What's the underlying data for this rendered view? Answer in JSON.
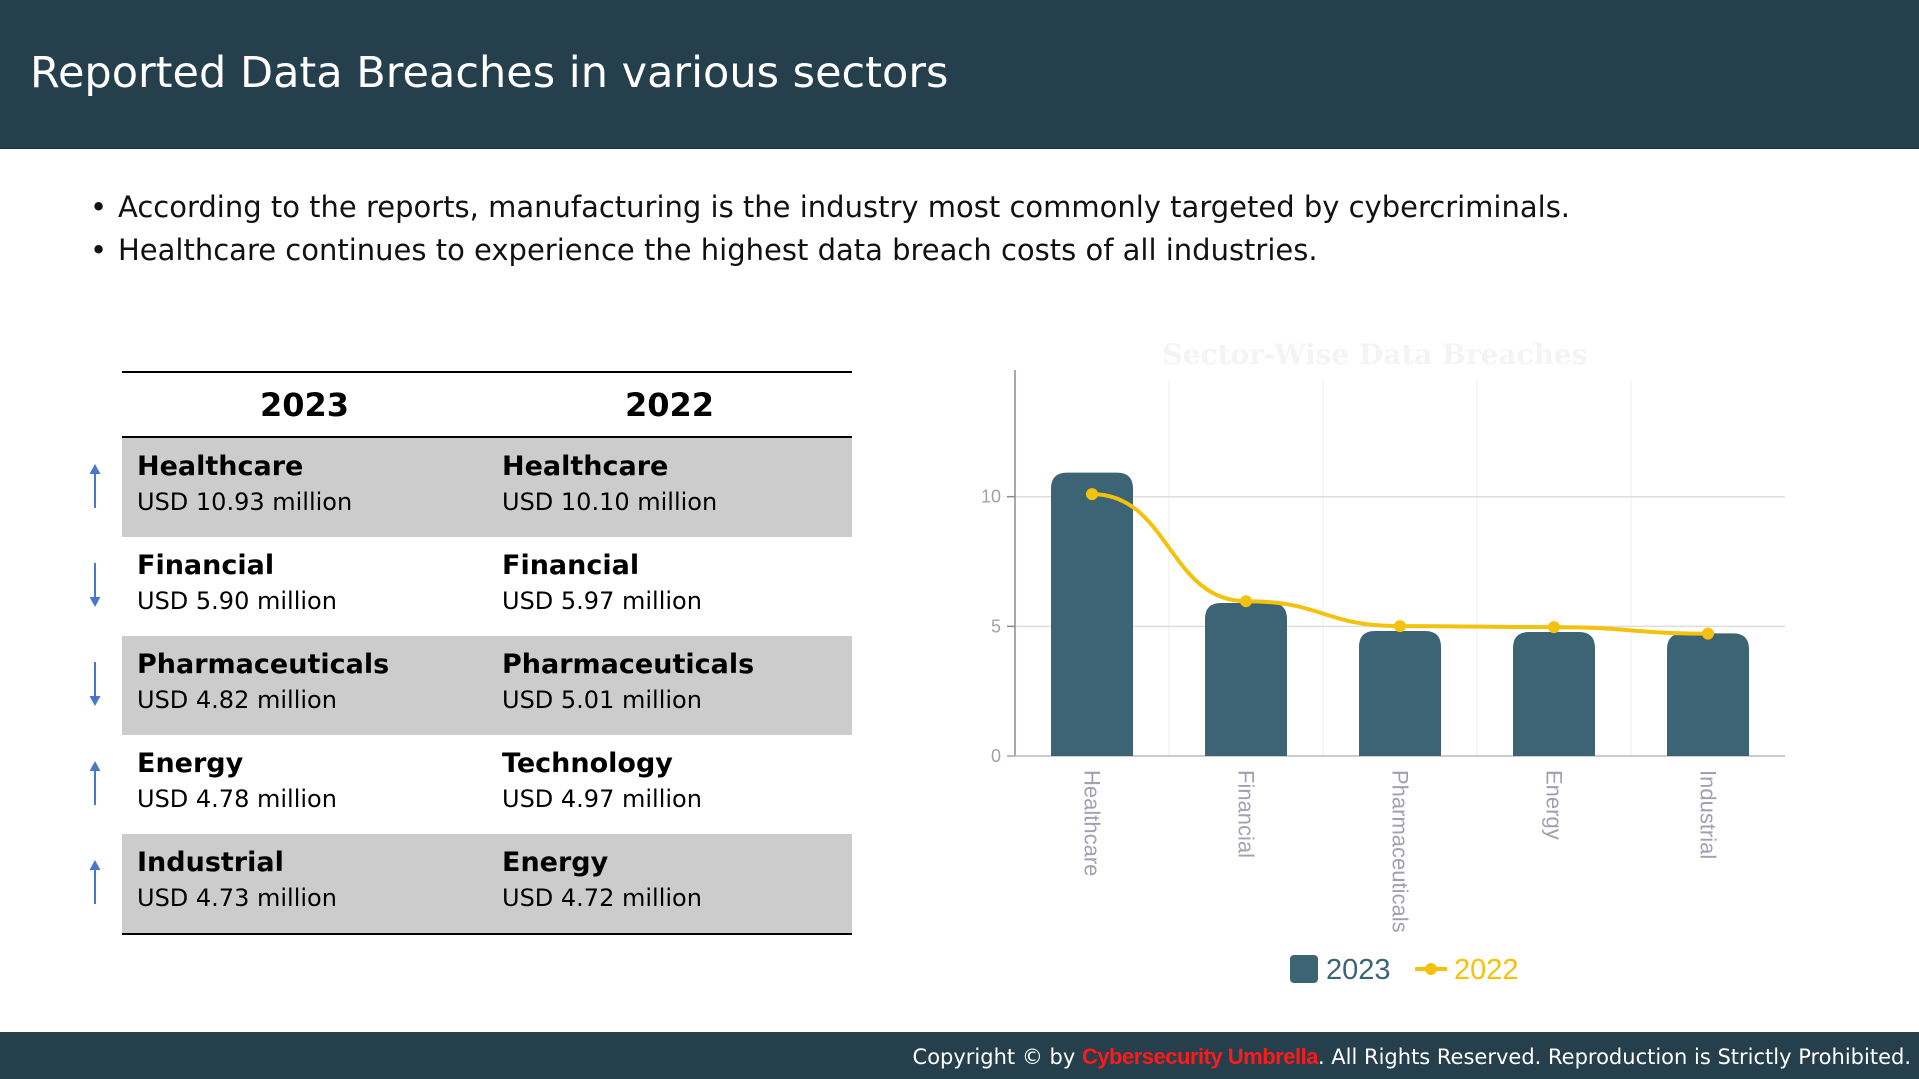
{
  "header": {
    "title": "Reported Data Breaches in various sectors"
  },
  "bullets": [
    "According to the reports, manufacturing is the industry most commonly targeted by cybercriminals.",
    "Healthcare continues to experience the highest data breach costs of all industries."
  ],
  "table": {
    "columns": [
      "2023",
      "2022"
    ],
    "rows": [
      {
        "trend": "up",
        "y2023": {
          "sector": "Healthcare",
          "amount": "USD 10.93 million"
        },
        "y2022": {
          "sector": "Healthcare",
          "amount": "USD 10.10 million"
        }
      },
      {
        "trend": "down",
        "y2023": {
          "sector": "Financial",
          "amount": "USD 5.90 million"
        },
        "y2022": {
          "sector": "Financial",
          "amount": "USD 5.97 million"
        }
      },
      {
        "trend": "down",
        "y2023": {
          "sector": "Pharmaceuticals",
          "amount": "USD 4.82 million"
        },
        "y2022": {
          "sector": "Pharmaceuticals",
          "amount": "USD 5.01 million"
        }
      },
      {
        "trend": "up",
        "y2023": {
          "sector": "Energy",
          "amount": "USD 4.78 million"
        },
        "y2022": {
          "sector": "Technology",
          "amount": "USD 4.97 million"
        }
      },
      {
        "trend": "up",
        "y2023": {
          "sector": "Industrial",
          "amount": "USD 4.73 million"
        },
        "y2022": {
          "sector": "Energy",
          "amount": "USD 4.72 million"
        }
      }
    ]
  },
  "chart_data": {
    "type": "bar",
    "title": "Sector-Wise Data Breaches",
    "categories": [
      "Healthcare",
      "Financial",
      "Pharmaceuticals",
      "Energy",
      "Industrial"
    ],
    "series": [
      {
        "name": "2023",
        "type": "bar",
        "values": [
          10.93,
          5.9,
          4.82,
          4.78,
          4.73
        ],
        "color": "#3d6475"
      },
      {
        "name": "2022",
        "type": "line",
        "values": [
          10.1,
          5.97,
          5.01,
          4.97,
          4.72
        ],
        "color": "#f4c20d"
      }
    ],
    "yticks": [
      0,
      5,
      10
    ],
    "ylim": [
      0,
      14.5
    ],
    "grid": true,
    "legend": "bottom",
    "colors": {
      "title": "#f4f4f6",
      "axis": "#8a8a9a",
      "grid": "#dddddd",
      "tick": "#a0a0b0"
    }
  },
  "footer": {
    "prefix": "Copyright © by ",
    "brand": "Cybersecurity Umbrella",
    "suffix": ". All Rights Reserved. Reproduction is Strictly Prohibited."
  },
  "colors": {
    "header_bg": "#253f4d",
    "row_shade": "#cccccc",
    "arrow": "#4a78c8",
    "brand": "#ff1a1a"
  }
}
